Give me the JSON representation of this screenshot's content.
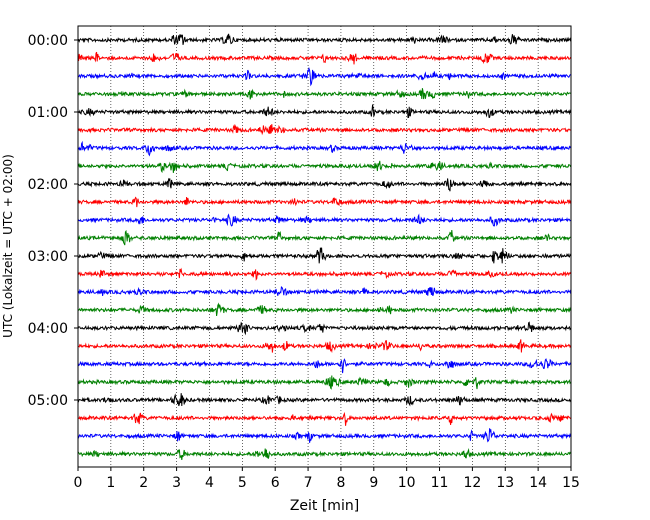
{
  "chart_data": {
    "type": "line",
    "title": "",
    "xlabel": "Zeit  [min]",
    "ylabel": "UTC (Lokalzeit = UTC + 02:00)",
    "xlim": [
      0,
      15
    ],
    "x_ticks": [
      "0",
      "1",
      "2",
      "3",
      "4",
      "5",
      "6",
      "7",
      "8",
      "9",
      "10",
      "11",
      "12",
      "13",
      "14",
      "15"
    ],
    "y_ticks": [
      "00:00",
      "01:00",
      "02:00",
      "03:00",
      "04:00",
      "05:00"
    ],
    "trace_interval_min": 15,
    "trace_count": 24,
    "trace_colors": [
      "#000000",
      "#ff0000",
      "#0000ff",
      "#008000"
    ],
    "grid": {
      "vertical_dotted": true,
      "horizontal": false
    },
    "legend": "none"
  }
}
